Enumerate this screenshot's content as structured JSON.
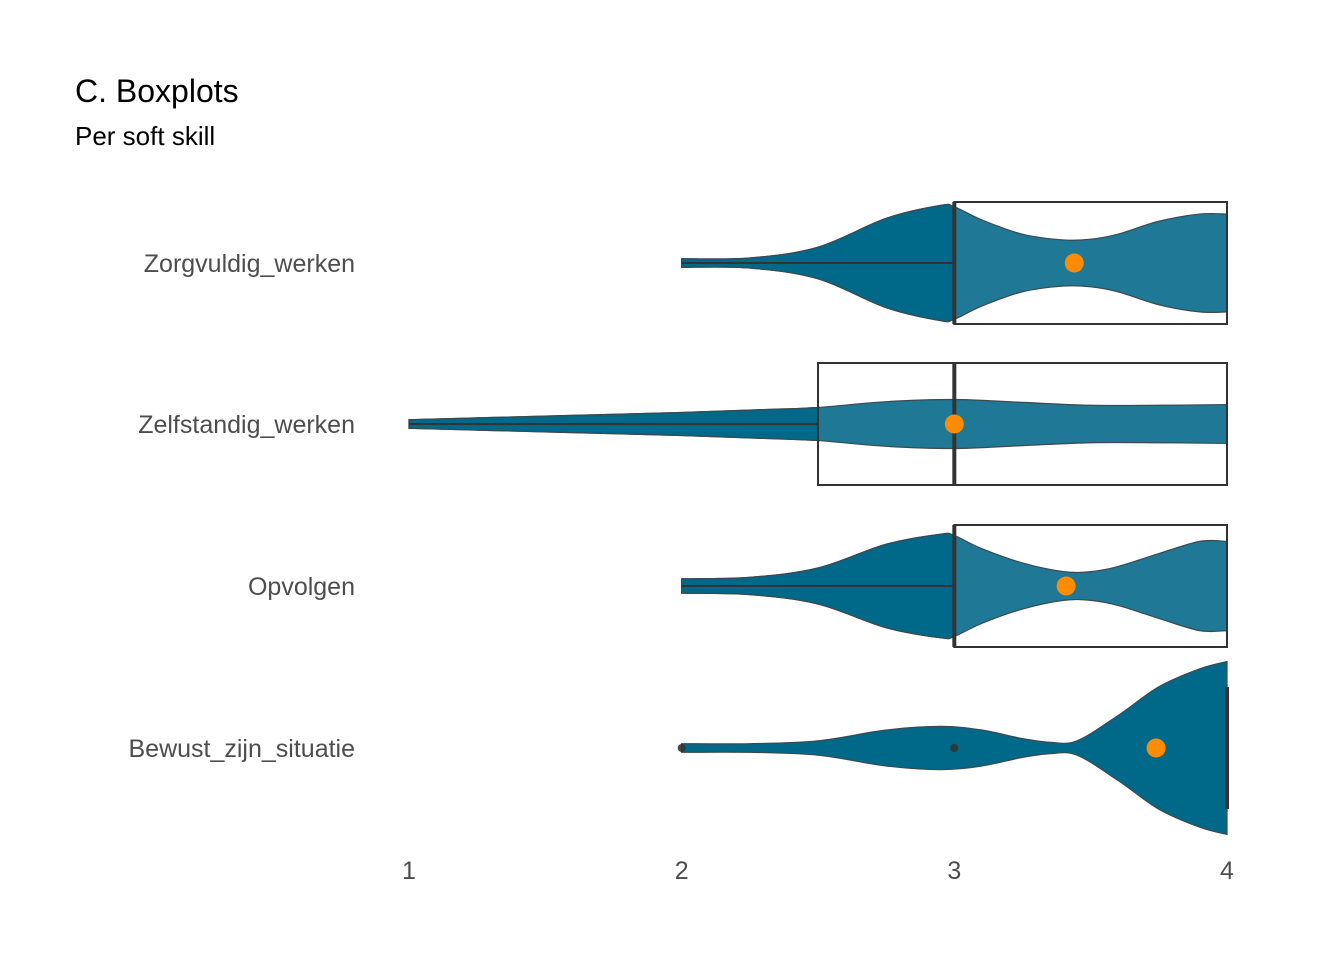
{
  "chart_data": {
    "type": "violin+boxplot",
    "title": "C. Boxplots",
    "subtitle": "Per soft skill",
    "xlim": [
      1,
      4
    ],
    "x_ticks": [
      "1",
      "2",
      "3",
      "4"
    ],
    "grid": false,
    "colors": {
      "violin_fill": "#006989",
      "violin_fill_box": "#1f7896",
      "violin_stroke": "#3a4a50",
      "box_stroke": "#333333",
      "median": "#333333",
      "mean_point": "#ff8c00"
    },
    "categories": [
      "Zorgvuldig_werken",
      "Zelfstandig_werken",
      "Opvolgen",
      "Bewust_zijn_situatie"
    ],
    "series": [
      {
        "category": "Zorgvuldig_werken",
        "min": 2,
        "q1": 3,
        "median": 3,
        "q3": 4,
        "max": 4,
        "mean": 3.44,
        "outliers": [],
        "density": [
          [
            2,
            0.06
          ],
          [
            2.25,
            0.07
          ],
          [
            2.5,
            0.22
          ],
          [
            2.75,
            0.62
          ],
          [
            2.95,
            0.8
          ],
          [
            3,
            0.78
          ],
          [
            3.1,
            0.6
          ],
          [
            3.25,
            0.4
          ],
          [
            3.4,
            0.32
          ],
          [
            3.5,
            0.33
          ],
          [
            3.6,
            0.4
          ],
          [
            3.75,
            0.58
          ],
          [
            3.9,
            0.68
          ],
          [
            4,
            0.68
          ]
        ]
      },
      {
        "category": "Zelfstandig_werken",
        "min": 1,
        "q1": 2.5,
        "median": 3,
        "q3": 4,
        "max": 4,
        "mean": 3,
        "outliers": [],
        "density": [
          [
            1,
            0.06
          ],
          [
            1.3,
            0.09
          ],
          [
            1.6,
            0.12
          ],
          [
            2,
            0.16
          ],
          [
            2.3,
            0.2
          ],
          [
            2.5,
            0.23
          ],
          [
            2.75,
            0.31
          ],
          [
            3,
            0.34
          ],
          [
            3.25,
            0.3
          ],
          [
            3.5,
            0.26
          ],
          [
            3.75,
            0.26
          ],
          [
            4,
            0.27
          ]
        ]
      },
      {
        "category": "Opvolgen",
        "min": 2,
        "q1": 3,
        "median": 3,
        "q3": 4,
        "max": 4,
        "mean": 3.41,
        "outliers": [],
        "density": [
          [
            2,
            0.1
          ],
          [
            2.25,
            0.12
          ],
          [
            2.5,
            0.25
          ],
          [
            2.75,
            0.58
          ],
          [
            2.95,
            0.72
          ],
          [
            3,
            0.7
          ],
          [
            3.1,
            0.52
          ],
          [
            3.25,
            0.32
          ],
          [
            3.4,
            0.2
          ],
          [
            3.5,
            0.2
          ],
          [
            3.6,
            0.27
          ],
          [
            3.75,
            0.45
          ],
          [
            3.9,
            0.62
          ],
          [
            4,
            0.62
          ]
        ]
      },
      {
        "category": "Bewust_zijn_situatie",
        "min": 4,
        "q1": 4,
        "median": 4,
        "q3": 4,
        "max": 4,
        "mean": 3.74,
        "outliers": [
          2,
          3
        ],
        "density": [
          [
            2,
            0.06
          ],
          [
            2.25,
            0.06
          ],
          [
            2.5,
            0.1
          ],
          [
            2.75,
            0.25
          ],
          [
            2.95,
            0.3
          ],
          [
            3.1,
            0.25
          ],
          [
            3.25,
            0.13
          ],
          [
            3.35,
            0.08
          ],
          [
            3.45,
            0.1
          ],
          [
            3.6,
            0.45
          ],
          [
            3.75,
            0.85
          ],
          [
            3.9,
            1.1
          ],
          [
            4,
            1.2
          ]
        ]
      }
    ]
  }
}
